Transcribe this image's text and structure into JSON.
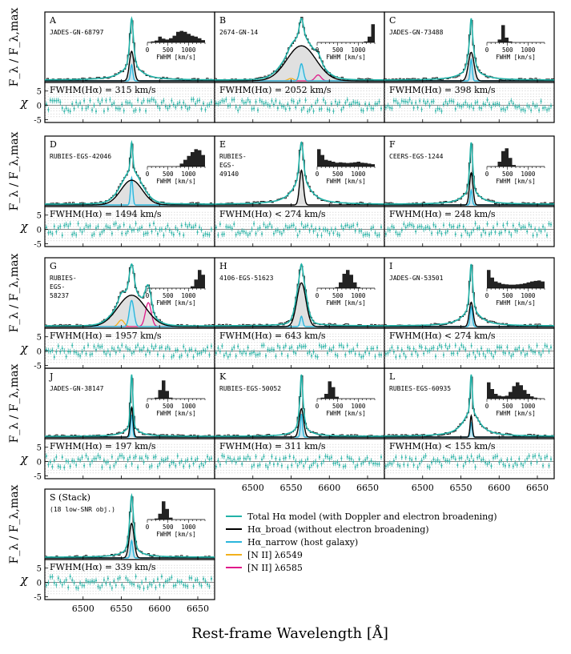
{
  "figure": {
    "ylabel_top": "F_λ / F_λ,max",
    "ylabel_bottom": "χ",
    "xlabel": "Rest-frame Wavelength [Å]",
    "x_ticks": [
      6500,
      6550,
      6600,
      6650
    ],
    "chi_ticks": [
      5,
      0,
      -5
    ],
    "inset_xlabel": "FWHM [km/s]",
    "inset_ticks": [
      0,
      500,
      1000
    ]
  },
  "colors": {
    "total": "#22b2a8",
    "broad": "#000000",
    "narrow": "#2bb6dc",
    "nii6549": "#f2b01c",
    "nii6585": "#e0198a",
    "data": "#111111",
    "residual": "#35b7ab",
    "fill": "#e0e0e0"
  },
  "legend": [
    {
      "key": "total",
      "label": "Total Hα model (with Doppler and electron broadening)"
    },
    {
      "key": "broad",
      "label": "Hα_broad (without electron broadening)"
    },
    {
      "key": "narrow",
      "label": "Hα_narrow (host galaxy)"
    },
    {
      "key": "nii6549",
      "label": "[N II] λ6549"
    },
    {
      "key": "nii6585",
      "label": "[N II] λ6585"
    }
  ],
  "chart_data": {
    "type": "line",
    "xlim": [
      6450,
      6672
    ],
    "ylim": [
      0,
      1.05
    ],
    "chi_ylim": [
      -6,
      8
    ],
    "panels": [
      {
        "letter": "A",
        "name": "JADES-GN-68797",
        "fwhm": "FWHM(Hα) = 315 km/s",
        "broad_fwhm_aa": 6.9,
        "broad_amp": 0.55,
        "narrow_amp": 0.3,
        "narrow_fwhm_aa": 3.5,
        "wing_width_aa": 28,
        "wing_amp": 0.3,
        "nii": [
          0,
          0
        ],
        "inset": "A"
      },
      {
        "letter": "B",
        "name": "2674-GN-14",
        "fwhm": "FWHM(Hα) = 2052 km/s",
        "broad_fwhm_aa": 45,
        "broad_amp": 0.72,
        "narrow_amp": 0.35,
        "narrow_fwhm_aa": 6,
        "wing_width_aa": 32,
        "wing_amp": 0.2,
        "nii": [
          0.05,
          0.12
        ],
        "inset": "B"
      },
      {
        "letter": "C",
        "name": "JADES-GN-73488",
        "fwhm": "FWHM(Hα) = 398 km/s",
        "broad_fwhm_aa": 8.7,
        "broad_amp": 0.6,
        "narrow_amp": 0.45,
        "narrow_fwhm_aa": 3.2,
        "wing_width_aa": 30,
        "wing_amp": 0.25,
        "nii": [
          0,
          0
        ],
        "inset": "C"
      },
      {
        "letter": "D",
        "name": "RUBIES-EGS-42046",
        "fwhm": "FWHM(Hα) = 1494 km/s",
        "broad_fwhm_aa": 33,
        "broad_amp": 0.5,
        "narrow_amp": 0.55,
        "narrow_fwhm_aa": 3.5,
        "wing_width_aa": 25,
        "wing_amp": 0.2,
        "nii": [
          0,
          0
        ],
        "inset": "D"
      },
      {
        "letter": "E",
        "name": "RUBIES-EGS-49140",
        "fwhm": "FWHM(Hα) < 274 km/s",
        "broad_fwhm_aa": 6,
        "broad_amp": 0.95,
        "narrow_amp": 0,
        "narrow_fwhm_aa": 3,
        "wing_width_aa": 26,
        "wing_amp": 0.75,
        "nii": [
          0,
          0
        ],
        "inset": "E"
      },
      {
        "letter": "F",
        "name": "CEERS-EGS-1244",
        "fwhm": "FWHM(Hα) = 248 km/s",
        "broad_fwhm_aa": 5.4,
        "broad_amp": 0.65,
        "narrow_amp": 0.3,
        "narrow_fwhm_aa": 3,
        "wing_width_aa": 24,
        "wing_amp": 0.3,
        "nii": [
          0,
          0
        ],
        "inset": "F"
      },
      {
        "letter": "G",
        "name": "RUBIES-EGS-58237",
        "fwhm": "FWHM(Hα) = 1957 km/s",
        "broad_fwhm_aa": 43,
        "broad_amp": 0.72,
        "narrow_amp": 0.6,
        "narrow_fwhm_aa": 7,
        "wing_width_aa": 30,
        "wing_amp": 0.1,
        "nii": [
          0.15,
          0.55
        ],
        "inset": "G"
      },
      {
        "letter": "H",
        "name": "4106-EGS-51623",
        "fwhm": "FWHM(Hα) = 643 km/s",
        "broad_fwhm_aa": 14,
        "broad_amp": 0.85,
        "narrow_amp": 0.2,
        "narrow_fwhm_aa": 4,
        "wing_width_aa": 26,
        "wing_amp": 0.15,
        "nii": [
          0,
          0
        ],
        "inset": "H"
      },
      {
        "letter": "I",
        "name": "JADES-GN-53501",
        "fwhm": "FWHM(Hα) < 274 km/s",
        "broad_fwhm_aa": 6,
        "broad_amp": 0.55,
        "narrow_amp": 0.45,
        "narrow_fwhm_aa": 3.5,
        "wing_width_aa": 26,
        "wing_amp": 0.4,
        "nii": [
          0,
          0
        ],
        "inset": "I"
      },
      {
        "letter": "J",
        "name": "JADES-GN-38147",
        "fwhm": "FWHM(Hα) = 197 km/s",
        "broad_fwhm_aa": 4.3,
        "broad_amp": 0.6,
        "narrow_amp": 0.45,
        "narrow_fwhm_aa": 3,
        "wing_width_aa": 20,
        "wing_amp": 0.2,
        "nii": [
          0,
          0
        ],
        "inset": "J"
      },
      {
        "letter": "K",
        "name": "RUBIES-EGS-50052",
        "fwhm": "FWHM(Hα) = 311 km/s",
        "broad_fwhm_aa": 6.8,
        "broad_amp": 0.55,
        "narrow_amp": 0.45,
        "narrow_fwhm_aa": 3,
        "wing_width_aa": 22,
        "wing_amp": 0.2,
        "nii": [
          0,
          0
        ],
        "inset": "K"
      },
      {
        "letter": "L",
        "name": "RUBIES-EGS-60935",
        "fwhm": "FWHM(Hα) < 155 km/s",
        "broad_fwhm_aa": 3.4,
        "broad_amp": 0.45,
        "narrow_amp": 0.3,
        "narrow_fwhm_aa": 3,
        "wing_width_aa": 24,
        "wing_amp": 0.55,
        "nii": [
          0,
          0
        ],
        "inset": "L"
      },
      {
        "letter": "S (Stack)",
        "name": "(18 low-SNR obj.)",
        "fwhm": "FWHM(Hα) = 339 km/s",
        "broad_fwhm_aa": 7.4,
        "broad_amp": 0.7,
        "narrow_amp": 0.35,
        "narrow_fwhm_aa": 3.5,
        "wing_width_aa": 24,
        "wing_amp": 0.2,
        "nii": [
          0,
          0
        ],
        "inset": "S"
      }
    ],
    "insets": {
      "A": [
        0.02,
        0.05,
        0.1,
        0.3,
        0.2,
        0.15,
        0.22,
        0.35,
        0.55,
        0.6,
        0.55,
        0.45,
        0.35,
        0.3,
        0.22,
        0.12
      ],
      "B": [
        0,
        0,
        0,
        0,
        0,
        0,
        0,
        0,
        0,
        0,
        0,
        0,
        0,
        0.05,
        0.3,
        0.95
      ],
      "C": [
        0,
        0,
        0,
        0.15,
        0.9,
        0.25,
        0.05,
        0,
        0,
        0,
        0,
        0,
        0,
        0,
        0,
        0
      ],
      "D": [
        0,
        0,
        0,
        0,
        0,
        0,
        0,
        0,
        0.02,
        0.15,
        0.35,
        0.55,
        0.75,
        0.9,
        0.85,
        0.6
      ],
      "E": [
        0.9,
        0.6,
        0.35,
        0.3,
        0.25,
        0.2,
        0.22,
        0.2,
        0.18,
        0.2,
        0.22,
        0.25,
        0.2,
        0.18,
        0.15,
        0.12
      ],
      "F": [
        0,
        0,
        0.02,
        0.25,
        0.8,
        0.95,
        0.45,
        0.08,
        0,
        0,
        0,
        0,
        0,
        0,
        0,
        0
      ],
      "G": [
        0,
        0,
        0,
        0,
        0,
        0,
        0,
        0,
        0,
        0,
        0,
        0,
        0.1,
        0.45,
        0.95,
        0.7
      ],
      "H": [
        0,
        0,
        0,
        0,
        0,
        0.05,
        0.3,
        0.75,
        0.95,
        0.7,
        0.3,
        0.05,
        0,
        0,
        0,
        0
      ],
      "I": [
        0.95,
        0.55,
        0.35,
        0.28,
        0.22,
        0.2,
        0.18,
        0.18,
        0.2,
        0.22,
        0.25,
        0.3,
        0.35,
        0.38,
        0.4,
        0.35
      ],
      "J": [
        0,
        0,
        0.05,
        0.45,
        0.95,
        0.4,
        0.05,
        0,
        0,
        0,
        0,
        0,
        0,
        0,
        0,
        0
      ],
      "K": [
        0,
        0.05,
        0.25,
        0.9,
        0.6,
        0.1,
        0,
        0,
        0,
        0,
        0,
        0,
        0,
        0,
        0,
        0
      ],
      "L": [
        0.85,
        0.5,
        0.25,
        0.15,
        0.12,
        0.15,
        0.35,
        0.65,
        0.85,
        0.7,
        0.45,
        0.25,
        0.12,
        0.05,
        0.02,
        0
      ],
      "S": [
        0,
        0,
        0.05,
        0.3,
        0.95,
        0.55,
        0.1,
        0,
        0,
        0,
        0,
        0,
        0,
        0,
        0,
        0
      ]
    }
  }
}
